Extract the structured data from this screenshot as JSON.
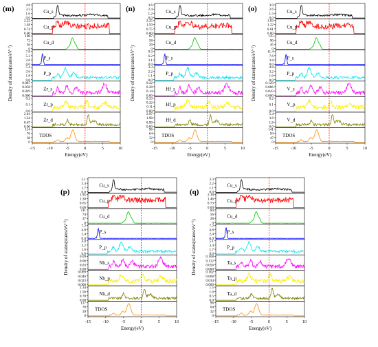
{
  "colors": {
    "s_main": "#000000",
    "p_main": "#ff0000",
    "d_main": "#00c000",
    "P_s": "#0000ff",
    "P_p": "#00e5ee",
    "M_s": "#ff00ff",
    "M_p": "#ffee00",
    "M_d": "#808000",
    "TDOS": "#ff8c00",
    "fermi": "#ff0000"
  },
  "shared": {
    "xlabel": "Energy(eV)",
    "ylabel": "Density of states(states/eV",
    "ylabel_sup": "-1",
    "ylabel_tail": ")",
    "xticks": [
      -15,
      -10,
      -5,
      0,
      5,
      10
    ],
    "xlim": [
      -15,
      10
    ],
    "fermi_level": 0
  },
  "chart_data": [
    {
      "type": "line",
      "panel": "(m)",
      "title": "(m)",
      "xlabel": "Energy(eV)",
      "ylabel": "Density of states(states/eV-1)",
      "xlim": [
        -15,
        10
      ],
      "series": [
        {
          "name": "Cu_s",
          "color_key": "s_main",
          "yticks": [
            "4.8",
            "3.2",
            "1.6",
            "0.0"
          ],
          "ymax": 4.8,
          "kind": "s"
        },
        {
          "name": "Cu_p",
          "color_key": "p_main",
          "yticks": [
            "2.22",
            "1.48",
            "0.74",
            "0.00"
          ],
          "ymax": 2.22,
          "kind": "p"
        },
        {
          "name": "Cu_d",
          "color_key": "d_main",
          "yticks": [
            "108",
            "72",
            "36",
            "0"
          ],
          "ymax": 108,
          "kind": "d"
        },
        {
          "name": "P_s",
          "color_key": "P_s",
          "yticks": [
            "7.8",
            "5.2",
            "2.6",
            "0.0"
          ],
          "ymax": 7.8,
          "kind": "Ps"
        },
        {
          "name": "P_p",
          "color_key": "P_p",
          "yticks": [
            "5.4",
            "3.6",
            "1.8",
            "0.0"
          ],
          "ymax": 5.4,
          "kind": "Pp"
        },
        {
          "name": "Zr_s",
          "color_key": "M_s",
          "yticks": [
            "0.087",
            "0.058",
            "0.029",
            "0.000"
          ],
          "ymax": 0.087,
          "kind": "Ms"
        },
        {
          "name": "Zr_p",
          "color_key": "M_p",
          "yticks": [
            "0.2",
            "0.1",
            "0.0"
          ],
          "ymax": 0.2,
          "kind": "Mp"
        },
        {
          "name": "Zr_d",
          "color_key": "M_d",
          "yticks": [
            "2.01",
            "1.34",
            "0.67",
            "0.00"
          ],
          "ymax": 2.01,
          "kind": "Md"
        },
        {
          "name": "TDOS",
          "color_key": "TDOS",
          "yticks": [
            "114",
            "76",
            "38",
            "0"
          ],
          "ymax": 114,
          "kind": "T"
        }
      ]
    },
    {
      "type": "line",
      "panel": "(n)",
      "title": "(n)",
      "xlabel": "Energy(eV)",
      "ylabel": "Density of states(states/eV-1)",
      "xlim": [
        -15,
        10
      ],
      "series": [
        {
          "name": "Cu_s",
          "color_key": "s_main",
          "yticks": [
            "3.6",
            "2.4",
            "1.2",
            "0.0"
          ],
          "ymax": 3.6,
          "kind": "s"
        },
        {
          "name": "Cu_p",
          "color_key": "p_main",
          "yticks": [
            "2.25",
            "1.50",
            "0.75",
            "0.00"
          ],
          "ymax": 2.25,
          "kind": "p"
        },
        {
          "name": "Cu_d",
          "color_key": "d_main",
          "yticks": [
            "87",
            "58",
            "29",
            "0"
          ],
          "ymax": 87,
          "kind": "d"
        },
        {
          "name": "P_s",
          "color_key": "P_s",
          "yticks": [
            "9.3",
            "6.2",
            "3.1",
            "0.0"
          ],
          "ymax": 9.3,
          "kind": "Ps"
        },
        {
          "name": "P_p",
          "color_key": "P_p",
          "yticks": [
            "3.3",
            "2.2",
            "1.1",
            "0.0"
          ],
          "ymax": 3.3,
          "kind": "Pp"
        },
        {
          "name": "Hf_s",
          "color_key": "M_s",
          "yticks": [
            "0.42",
            "0.28",
            "0.14",
            "0.00"
          ],
          "ymax": 0.42,
          "kind": "Ms"
        },
        {
          "name": "Hf_p",
          "color_key": "M_p",
          "yticks": [
            "0.33",
            "0.22",
            "0.11",
            "0.00"
          ],
          "ymax": 0.33,
          "kind": "Mp"
        },
        {
          "name": "Hf_d",
          "color_key": "M_d",
          "yticks": [
            "2.97",
            "1.98",
            "0.99",
            "0.00"
          ],
          "ymax": 2.97,
          "kind": "Md"
        },
        {
          "name": "TDOS",
          "color_key": "TDOS",
          "yticks": [
            "96",
            "64",
            "32",
            "0"
          ],
          "ymax": 96,
          "kind": "T"
        }
      ]
    },
    {
      "type": "line",
      "panel": "(o)",
      "title": "(o)",
      "xlabel": "Energy(eV)",
      "ylabel": "Density of states(states/eV-1)",
      "xlim": [
        -15,
        10
      ],
      "series": [
        {
          "name": "Cu_s",
          "color_key": "s_main",
          "yticks": [
            "3.9",
            "2.6",
            "1.3",
            "0.0"
          ],
          "ymax": 3.9,
          "kind": "s"
        },
        {
          "name": "Cu_p",
          "color_key": "p_main",
          "yticks": [
            "1.83",
            "1.22",
            "0.61",
            "0.00"
          ],
          "ymax": 1.83,
          "kind": "p"
        },
        {
          "name": "Cu_d",
          "color_key": "d_main",
          "yticks": [
            "135",
            "90",
            "45",
            "0"
          ],
          "ymax": 135,
          "kind": "d"
        },
        {
          "name": "P_s",
          "color_key": "P_s",
          "yticks": [
            "11.4",
            "7.6",
            "3.8",
            "0.0"
          ],
          "ymax": 11.4,
          "kind": "Ps"
        },
        {
          "name": "P_p",
          "color_key": "P_p",
          "yticks": [
            "4.8",
            "3.2",
            "1.6",
            "0.0"
          ],
          "ymax": 4.8,
          "kind": "Pp"
        },
        {
          "name": "V_s",
          "color_key": "M_s",
          "yticks": [
            "0.129",
            "0.086",
            "0.043",
            "0.000"
          ],
          "ymax": 0.129,
          "kind": "Ms"
        },
        {
          "name": "V_p",
          "color_key": "M_p",
          "yticks": [
            "0.2",
            "0.1",
            "0.0"
          ],
          "ymax": 0.2,
          "kind": "Mp"
        },
        {
          "name": "V_d",
          "color_key": "M_d",
          "yticks": [
            "5.4",
            "3.6",
            "1.8",
            "0.0"
          ],
          "ymax": 5.4,
          "kind": "Md"
        },
        {
          "name": "TDOS",
          "color_key": "TDOS",
          "yticks": [
            "141",
            "94",
            "47",
            "0"
          ],
          "ymax": 141,
          "kind": "T"
        }
      ]
    },
    {
      "type": "line",
      "panel": "(p)",
      "title": "(p)",
      "xlabel": "Energy(eV)",
      "ylabel": "Density of states(states/eV-1)",
      "xlim": [
        -15,
        10
      ],
      "series": [
        {
          "name": "Cu_s",
          "color_key": "s_main",
          "yticks": [
            "5.1",
            "3.4",
            "1.7",
            "0.0"
          ],
          "ymax": 5.1,
          "kind": "s"
        },
        {
          "name": "Cu_p",
          "color_key": "p_main",
          "yticks": [
            "1.95",
            "1.30",
            "0.65",
            "0.00"
          ],
          "ymax": 1.95,
          "kind": "p"
        },
        {
          "name": "Cu_d",
          "color_key": "d_main",
          "yticks": [
            "111",
            "74",
            "37",
            "0"
          ],
          "ymax": 111,
          "kind": "d"
        },
        {
          "name": "P_s",
          "color_key": "P_s",
          "yticks": [
            "7.2",
            "4.8",
            "2.4",
            "0.0"
          ],
          "ymax": 7.2,
          "kind": "Ps"
        },
        {
          "name": "P_p",
          "color_key": "P_p",
          "yticks": [
            "4.8",
            "3.2",
            "1.6",
            "0.0"
          ],
          "ymax": 4.8,
          "kind": "Pp"
        },
        {
          "name": "Nb_s",
          "color_key": "M_s",
          "yticks": [
            "0.09",
            "0.06",
            "0.03",
            "0.00"
          ],
          "ymax": 0.09,
          "kind": "Ms"
        },
        {
          "name": "Nb_p",
          "color_key": "M_p",
          "yticks": [
            "0.069",
            "0.046",
            "0.023",
            "0.000"
          ],
          "ymax": 0.069,
          "kind": "Mp"
        },
        {
          "name": "Nb_d",
          "color_key": "M_d",
          "yticks": [
            "2.34",
            "1.56",
            "0.78",
            "0.00"
          ],
          "ymax": 2.34,
          "kind": "Md"
        },
        {
          "name": "TDOS",
          "color_key": "TDOS",
          "yticks": [
            "117",
            "78",
            "39",
            "0"
          ],
          "ymax": 117,
          "kind": "T"
        }
      ]
    },
    {
      "type": "line",
      "panel": "(q)",
      "title": "(q)",
      "xlabel": "Energy(eV)",
      "ylabel": "Density of states(states/eV-1)",
      "xlim": [
        -15,
        10
      ],
      "series": [
        {
          "name": "Cu_s",
          "color_key": "s_main",
          "yticks": [
            "3.3",
            "2.2",
            "1.1",
            "0.0"
          ],
          "ymax": 3.3,
          "kind": "s"
        },
        {
          "name": "Cu_p",
          "color_key": "p_main",
          "yticks": [
            "2.19",
            "1.46",
            "0.73",
            "0.00"
          ],
          "ymax": 2.19,
          "kind": "p"
        },
        {
          "name": "Cu_d",
          "color_key": "d_main",
          "yticks": [
            "84",
            "56",
            "28",
            "0"
          ],
          "ymax": 84,
          "kind": "d"
        },
        {
          "name": "P_s",
          "color_key": "P_s",
          "yticks": [
            "7.2",
            "4.8",
            "2.4",
            "0.0"
          ],
          "ymax": 7.2,
          "kind": "Ps"
        },
        {
          "name": "P_p",
          "color_key": "P_p",
          "yticks": [
            "5.1",
            "3.4",
            "1.7",
            "0.0"
          ],
          "ymax": 5.1,
          "kind": "Pp"
        },
        {
          "name": "Ta_s",
          "color_key": "M_s",
          "yticks": [
            "0.168",
            "0.112",
            "0.056",
            "0.000"
          ],
          "ymax": 0.168,
          "kind": "Ms"
        },
        {
          "name": "Ta_p",
          "color_key": "M_p",
          "yticks": [
            "0.102",
            "0.068",
            "0.034",
            "0.000"
          ],
          "ymax": 0.102,
          "kind": "Mp"
        },
        {
          "name": "Ta_d",
          "color_key": "M_d",
          "yticks": [
            "1.5",
            "1.0",
            "0.5",
            "0.0"
          ],
          "ymax": 1.5,
          "kind": "Md"
        },
        {
          "name": "TDOS",
          "color_key": "TDOS",
          "yticks": [
            "96",
            "64",
            "32",
            "0"
          ],
          "ymax": 96,
          "kind": "T"
        }
      ]
    }
  ]
}
